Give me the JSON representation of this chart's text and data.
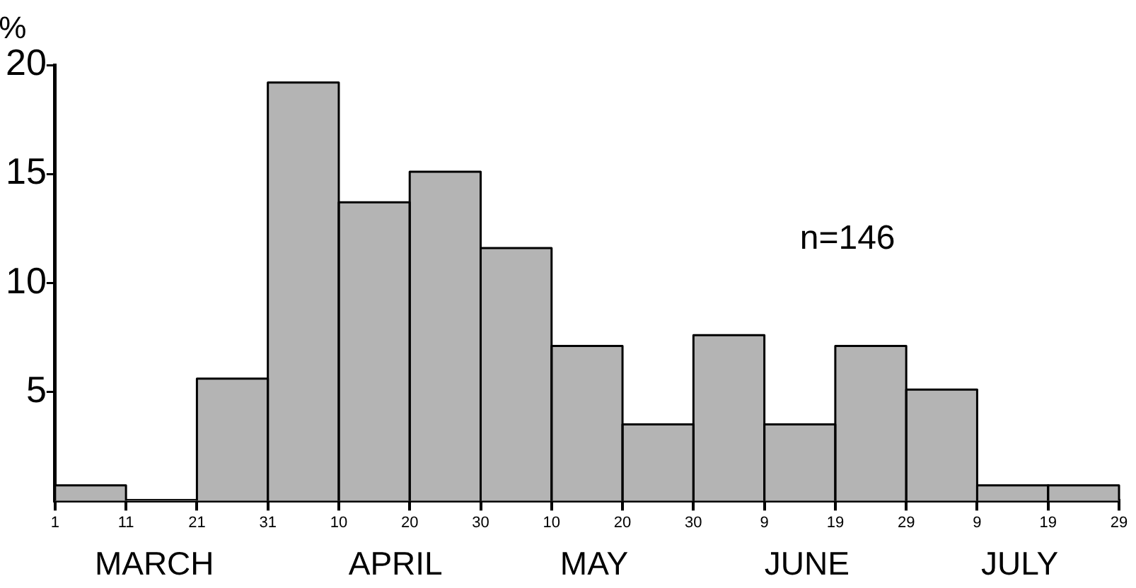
{
  "chart_data": {
    "type": "histogram",
    "ylabel": "%",
    "bins": [
      "--03-01",
      "--03-11",
      "--03-21",
      "--03-31",
      "--04-10",
      "--04-20",
      "--04-30",
      "--05-10",
      "--05-20",
      "--05-30",
      "--06-09",
      "--06-19",
      "--06-29",
      "--07-09",
      "--07-19",
      "--07-29"
    ],
    "values": [
      0.7,
      0,
      5.6,
      19.2,
      13.7,
      15.1,
      11.6,
      7.1,
      3.5,
      7.6,
      3.5,
      7.1,
      5.1,
      0.7,
      0.7
    ],
    "color": "#b4b4b4",
    "xlim": [
      "--03-01",
      "--07-29"
    ],
    "xticks": [
      {
        "value": "--03-01",
        "label": "1"
      },
      {
        "value": "--03-11",
        "label": "11"
      },
      {
        "value": "--03-21",
        "label": "21"
      },
      {
        "value": "--03-31",
        "label": "31"
      },
      {
        "value": "--04-10",
        "label": "10"
      },
      {
        "value": "--04-20",
        "label": "20"
      },
      {
        "value": "--04-30",
        "label": "30"
      },
      {
        "value": "--05-10",
        "label": "10"
      },
      {
        "value": "--05-20",
        "label": "20"
      },
      {
        "value": "--05-30",
        "label": "30"
      },
      {
        "value": "--06-09",
        "label": "9"
      },
      {
        "value": "--06-19",
        "label": "19"
      },
      {
        "value": "--06-29",
        "label": "29"
      },
      {
        "value": "--07-09",
        "label": "9"
      },
      {
        "value": "--07-19",
        "label": "19"
      },
      {
        "value": "--07-29",
        "label": "29"
      }
    ],
    "ylim": [
      0,
      20
    ],
    "yticks": [
      5,
      10,
      15,
      20
    ],
    "grid": false,
    "legend": false,
    "x2lim": [
      "--03-01",
      "--07-29"
    ],
    "x2ticks": [
      {
        "value": "--03-15",
        "label": "MARCH"
      },
      {
        "value": "--04-18",
        "label": "APRIL"
      },
      {
        "value": "--05-16",
        "label": "MAY"
      },
      {
        "value": "--06-15",
        "label": "JUNE"
      },
      {
        "value": "--07-15",
        "label": "JULY"
      }
    ],
    "annotations": [
      "n=146"
    ]
  }
}
